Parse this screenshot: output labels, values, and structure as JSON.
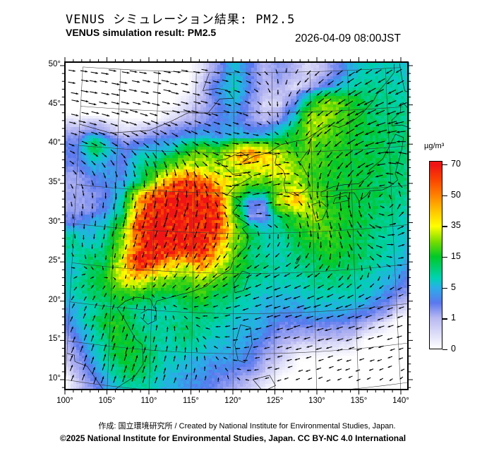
{
  "header": {
    "title_jp": "VENUS シミュレーション結果: PM2.5",
    "title_en": "VENUS simulation result: PM2.5",
    "datetime": "2026-04-09 08:00JST"
  },
  "footer": {
    "credit": "作成: 国立環境研究所 / Created by National Institute for Environmental Studies, Japan.",
    "copyright": "©2025 National Institute for Environmental Studies, Japan. CC BY-NC 4.0 International"
  },
  "colorbar": {
    "unit": "µg/m³",
    "tick_values": [
      70,
      50,
      35,
      15,
      5,
      1,
      0
    ],
    "stops": [
      [
        0,
        "#ffffff"
      ],
      [
        1,
        "#b8b8f2"
      ],
      [
        3,
        "#5a78ee"
      ],
      [
        5,
        "#2aaee8"
      ],
      [
        8,
        "#00d2b4"
      ],
      [
        15,
        "#00c828"
      ],
      [
        25,
        "#78dc00"
      ],
      [
        35,
        "#ffff00"
      ],
      [
        42,
        "#ffc800"
      ],
      [
        50,
        "#ff8200"
      ],
      [
        60,
        "#fa4600"
      ],
      [
        70,
        "#f01414"
      ]
    ]
  },
  "map": {
    "lat_tick_labels": [
      "50°",
      "45°",
      "40°",
      "35°",
      "30°",
      "25°",
      "20°",
      "15°",
      "10°"
    ],
    "lon_tick_labels": [
      "100°",
      "105°",
      "110°",
      "115°",
      "120°",
      "125°",
      "130°",
      "135°",
      "140°"
    ],
    "lat_tick_values": [
      50,
      45,
      40,
      35,
      30,
      25,
      20,
      15,
      10
    ],
    "lon_tick_values": [
      100,
      105,
      110,
      115,
      120,
      125,
      130,
      135,
      140
    ]
  },
  "chart_data": {
    "type": "heatmap",
    "title": "VENUS simulation result: PM2.5",
    "variable": "PM2.5 concentration",
    "unit": "µg/m³",
    "xlabel": "longitude (°E)",
    "ylabel": "latitude (°N)",
    "lon_range": [
      100,
      140.8
    ],
    "lat_range": [
      8.7,
      50.45
    ],
    "legend_ticks": [
      0,
      1,
      5,
      15,
      35,
      50,
      70
    ],
    "lons": [
      100,
      102,
      104,
      106,
      108,
      110,
      112,
      114,
      116,
      118,
      120,
      122,
      124,
      126,
      128,
      130,
      132,
      134,
      136,
      138,
      140,
      142,
      144
    ],
    "lats": [
      50,
      48,
      46,
      44,
      42,
      40,
      38,
      36,
      34,
      32,
      30,
      28,
      26,
      24,
      22,
      20,
      18,
      16,
      14,
      12,
      10
    ],
    "values": [
      [
        0,
        0,
        0,
        0,
        0,
        0,
        0,
        0,
        0.5,
        2,
        6,
        3,
        1,
        2,
        1,
        0.5,
        1,
        3,
        6,
        8,
        8,
        7,
        6
      ],
      [
        0,
        0,
        0,
        0,
        0,
        0,
        0,
        0,
        1,
        4,
        8,
        3,
        1,
        1,
        0.5,
        1,
        3,
        6,
        9,
        10,
        9,
        8,
        7
      ],
      [
        0,
        0,
        0,
        0,
        0,
        0,
        0,
        0.5,
        1,
        3,
        5,
        2,
        0.5,
        0.5,
        3,
        15,
        28,
        22,
        15,
        11,
        10,
        9,
        8
      ],
      [
        0,
        0,
        0,
        0,
        0,
        0,
        0.5,
        1,
        2,
        3,
        4,
        2,
        1,
        2,
        8,
        30,
        26,
        20,
        16,
        12,
        11,
        10,
        9
      ],
      [
        1,
        2,
        1,
        0.5,
        1,
        2,
        3,
        4,
        5,
        4,
        6,
        5,
        6,
        10,
        18,
        26,
        22,
        18,
        15,
        13,
        12,
        11,
        10
      ],
      [
        3,
        15,
        6,
        3,
        5,
        6,
        8,
        18,
        25,
        20,
        40,
        50,
        40,
        30,
        18,
        22,
        18,
        16,
        14,
        13,
        12,
        11,
        10
      ],
      [
        3,
        6,
        4,
        3,
        10,
        15,
        25,
        35,
        30,
        30,
        30,
        35,
        35,
        35,
        25,
        20,
        18,
        15,
        14,
        13,
        12,
        11,
        10
      ],
      [
        1.5,
        3,
        4,
        4,
        10,
        30,
        55,
        65,
        60,
        45,
        30,
        20,
        18,
        25,
        30,
        20,
        16,
        15,
        14,
        13,
        12,
        11,
        10
      ],
      [
        1.5,
        2,
        3,
        8,
        40,
        70,
        70,
        70,
        70,
        60,
        18,
        3,
        3,
        35,
        45,
        25,
        18,
        15,
        14,
        13,
        12,
        10,
        9
      ],
      [
        1.5,
        2,
        4,
        10,
        50,
        70,
        70,
        70,
        70,
        65,
        25,
        2,
        2,
        12,
        20,
        30,
        18,
        15,
        14,
        12,
        10,
        8,
        7
      ],
      [
        3,
        5,
        8,
        20,
        65,
        70,
        70,
        70,
        70,
        60,
        30,
        15,
        8,
        10,
        15,
        20,
        20,
        15,
        13,
        11,
        9,
        7,
        6
      ],
      [
        10,
        6,
        10,
        25,
        55,
        70,
        70,
        65,
        70,
        45,
        25,
        12,
        8,
        8,
        12,
        15,
        18,
        15,
        12,
        10,
        8,
        6,
        5
      ],
      [
        8,
        12,
        12,
        30,
        70,
        65,
        45,
        35,
        50,
        35,
        20,
        12,
        10,
        8,
        10,
        12,
        14,
        13,
        11,
        9,
        7,
        5,
        4
      ],
      [
        6,
        10,
        15,
        35,
        45,
        30,
        25,
        20,
        25,
        20,
        15,
        10,
        8,
        8,
        8,
        10,
        11,
        10,
        9,
        7,
        5,
        3,
        2
      ],
      [
        8,
        12,
        15,
        20,
        18,
        15,
        12,
        15,
        18,
        12,
        10,
        8,
        6,
        6,
        6,
        8,
        8,
        8,
        7,
        5,
        3,
        2,
        1
      ],
      [
        5,
        8,
        10,
        12,
        10,
        8,
        8,
        10,
        12,
        10,
        8,
        6,
        5,
        4,
        4,
        5,
        5,
        5,
        4,
        3,
        1,
        0.5,
        0.5
      ],
      [
        4,
        8,
        14,
        18,
        12,
        8,
        10,
        12,
        10,
        8,
        6,
        5,
        4,
        2,
        2,
        2,
        2,
        2,
        1,
        0.5,
        0,
        0,
        0
      ],
      [
        2,
        5,
        10,
        16,
        14,
        10,
        8,
        10,
        8,
        6,
        5,
        4,
        2,
        1,
        0.5,
        0.5,
        0.5,
        0.5,
        0,
        0,
        0,
        0,
        0
      ],
      [
        1,
        3,
        8,
        14,
        16,
        12,
        8,
        6,
        5,
        4,
        4,
        3,
        1,
        0.5,
        0,
        0,
        0,
        0,
        0,
        0,
        0,
        0,
        0
      ],
      [
        0.5,
        2,
        5,
        10,
        14,
        10,
        6,
        5,
        4,
        3,
        2,
        1,
        0.5,
        0,
        0,
        0,
        0,
        0,
        0,
        0,
        0,
        0,
        0
      ],
      [
        0,
        1,
        3,
        6,
        8,
        8,
        5,
        4,
        3,
        2,
        1,
        0.5,
        0,
        0,
        0,
        0,
        0,
        0,
        0,
        0,
        0,
        0,
        0
      ]
    ],
    "wind": {
      "base": {
        "u": 0.4,
        "v": 0
      },
      "flows": [
        {
          "u": 3.2,
          "v": -0.6,
          "clon": 107,
          "clat": 46,
          "slon": 12,
          "slat": 6
        },
        {
          "u": -1.4,
          "v": -3.0,
          "clon": 112,
          "clat": 33,
          "slon": 8,
          "slat": 6
        },
        {
          "u": 3.0,
          "v": 2.2,
          "clon": 123,
          "clat": 36,
          "slon": 4.5,
          "slat": 4
        },
        {
          "u": -3.6,
          "v": -2.0,
          "clon": 137,
          "clat": 46,
          "slon": 8,
          "slat": 5
        },
        {
          "u": -3.4,
          "v": -0.8,
          "clon": 132,
          "clat": 21,
          "slon": 11,
          "slat": 6
        },
        {
          "u": 0.6,
          "v": 2.8,
          "clon": 106,
          "clat": 13,
          "slon": 7,
          "slat": 6
        }
      ],
      "vortices": [
        {
          "clon": 139,
          "clat": 33.5,
          "s": 1.0,
          "sigma": 5.5
        }
      ]
    },
    "coastlines": [
      [
        100,
        13.4,
        100.9,
        13.3,
        101,
        12.5,
        102.5,
        12.1,
        103.8,
        10.4,
        105,
        8.8,
        106.8,
        10.4,
        108.2,
        11.5,
        109.2,
        13.2,
        109,
        15.6,
        108.2,
        16.2,
        106.6,
        18.8,
        105.8,
        19.9,
        106.8,
        20.9,
        108.1,
        21.5,
        109.8,
        21.4,
        110.3,
        20.3,
        110.6,
        21.2,
        113.6,
        22.2,
        114.6,
        22.5,
        116.6,
        23.3,
        118,
        24.5,
        119.6,
        25.5,
        120.1,
        26.9,
        121.6,
        28.3,
        121.9,
        29.6,
        121.1,
        30.6,
        121.9,
        31.1,
        120.3,
        32.1,
        119.9,
        32.6,
        120.9,
        33.9,
        120.3,
        34.4,
        119.2,
        34.8,
        120.3,
        36,
        120.9,
        36.2,
        122.3,
        37,
        121.6,
        37.6,
        119.9,
        37.3,
        118.9,
        38.2,
        117.8,
        39,
        118.9,
        39.2,
        120.9,
        40.1,
        121.9,
        39.5,
        121.2,
        38.9,
        122.6,
        39.6,
        123.9,
        39.9,
        124.4,
        40,
        125.5,
        39.7,
        125.3,
        38.7,
        126.3,
        37.8,
        126.6,
        37,
        126.4,
        36.1,
        126.6,
        35.1,
        127.9,
        34.6,
        128.9,
        35.1,
        129.5,
        35.6,
        129.5,
        36.9,
        128.7,
        38.4,
        128.4,
        38.7,
        129.1,
        39.6,
        129.8,
        40.4,
        129.9,
        41.6,
        130.7,
        42.4,
        131.3,
        42.8,
        132.3,
        43.3,
        133.6,
        42.9,
        135.1,
        43.4,
        136.6,
        44.4,
        138.3,
        46.1,
        138.9,
        47.1,
        140.3,
        48.5,
        141.1,
        49.4,
        141.2,
        50.5
      ],
      [
        141.9,
        50.5,
        142.1,
        48.6,
        142.4,
        47,
        143.6,
        46.4,
        143.1,
        47.6,
        143.3,
        49.1,
        142.9,
        50.5
      ],
      [
        130,
        32.9,
        130.4,
        31.3,
        131.2,
        31.5,
        131.9,
        32.9,
        131.1,
        33.7,
        129.9,
        33.4,
        130,
        32.9
      ],
      [
        132.6,
        33.4,
        134.6,
        33.7,
        134.3,
        34.3,
        132.9,
        34.1,
        132.6,
        33.4
      ],
      [
        131.1,
        34.4,
        132.6,
        34.3,
        134.1,
        34.7,
        135.3,
        34.6,
        135.9,
        33.5,
        136.9,
        34.2,
        137.3,
        34.7,
        138.9,
        34.7,
        139.9,
        35.1,
        140.9,
        35.8,
        140.6,
        36.6,
        141.1,
        38.1,
        141.6,
        39.6,
        141.9,
        41.1,
        140.9,
        41.6,
        140.3,
        40.6,
        139.9,
        39.9,
        139.1,
        38.6,
        137.3,
        37.3,
        137.5,
        36.9,
        136.9,
        36.3,
        135.9,
        35.7,
        134.1,
        35.7,
        132.6,
        35.5,
        131.1,
        34.9,
        131.1,
        34.4
      ],
      [
        140.5,
        42.7,
        141.8,
        42.7,
        143.1,
        42.1,
        144,
        43,
        143.1,
        44.2,
        142.1,
        45.5,
        141.7,
        45.4,
        141.7,
        44.4,
        140.5,
        43.4,
        140.5,
        42.7
      ],
      [
        121.1,
        25.3,
        122,
        25,
        121.3,
        22.9,
        120.2,
        22.6,
        120.1,
        23.8,
        121.1,
        25.3
      ],
      [
        108.7,
        19.5,
        109.6,
        20.1,
        110.6,
        20,
        110.6,
        18.8,
        109.6,
        18.2,
        108.7,
        19
      ],
      [
        120.2,
        16.1,
        120.9,
        18.6,
        122.1,
        18.3,
        122.3,
        16.2,
        121.4,
        13.9,
        120.6,
        14.2,
        120.2,
        16.1
      ],
      [
        122.4,
        11.8,
        123.6,
        10.3,
        125.1,
        11,
        124.4,
        12.3,
        122.4,
        11.8
      ],
      [
        100,
        42.7,
        104,
        41.9,
        109,
        42.5,
        111.9,
        43.8,
        114,
        44.9,
        116.6,
        44.9,
        118.1,
        46.7,
        119.9,
        46.8,
        119.1,
        47.8,
        117.8,
        48,
        115.9,
        47.7,
        116.7,
        49.9
      ],
      [
        124.4,
        40,
        126.1,
        41,
        128.1,
        41.4,
        129.1,
        41.5,
        130.7,
        42.4
      ],
      [
        127.7,
        26.2,
        128.3,
        26.8,
        127.9,
        26.1,
        127.7,
        26.2
      ]
    ]
  }
}
